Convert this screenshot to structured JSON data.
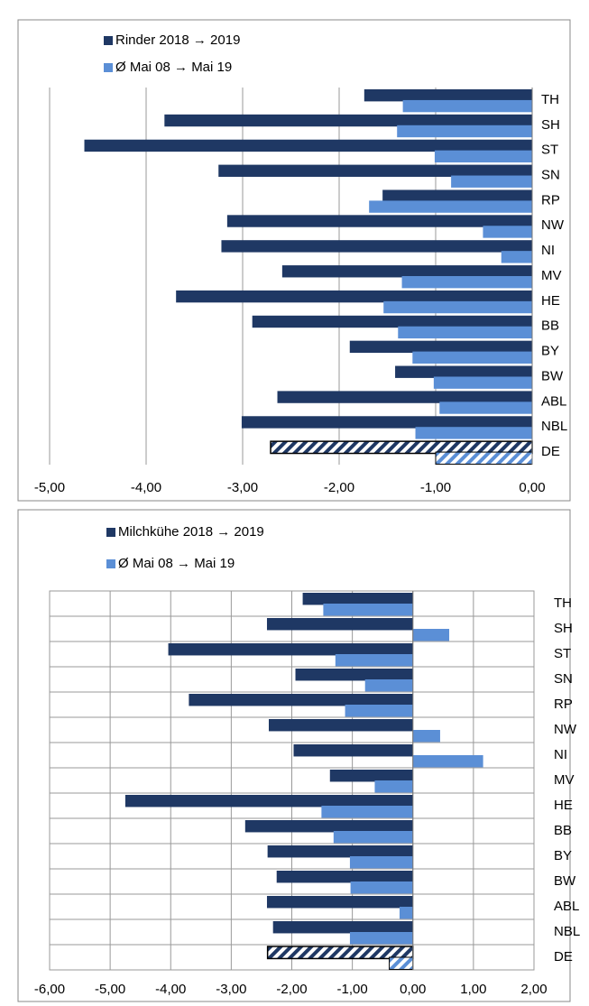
{
  "chart_data": [
    {
      "type": "bar",
      "orientation": "horizontal",
      "categories": [
        "TH",
        "SH",
        "ST",
        "SN",
        "RP",
        "NW",
        "NI",
        "MV",
        "HE",
        "BB",
        "BY",
        "BW",
        "ABL",
        "NBL",
        "DE"
      ],
      "series": [
        {
          "name": "Rinder  2018 → 2019",
          "color": "#1f3864",
          "values": [
            -1.74,
            -3.81,
            -4.64,
            -3.25,
            -1.55,
            -3.16,
            -3.22,
            -2.59,
            -3.69,
            -2.9,
            -1.89,
            -1.42,
            -2.64,
            -3.01,
            -2.71
          ]
        },
        {
          "name": "Ø Mai 08 → Mai 19",
          "color": "#5b8fd6",
          "values": [
            -1.34,
            -1.4,
            -1.01,
            -0.84,
            -1.69,
            -0.51,
            -0.32,
            -1.35,
            -1.54,
            -1.39,
            -1.24,
            -1.02,
            -0.96,
            -1.21,
            -1.0
          ]
        }
      ],
      "xlim": [
        -5,
        0
      ],
      "xticks": [
        {
          "value": -5,
          "label": "-5,00"
        },
        {
          "value": -4,
          "label": "-4,00"
        },
        {
          "value": -3,
          "label": "-3,00"
        },
        {
          "value": -2,
          "label": "-2,00"
        },
        {
          "value": -1,
          "label": "-1,00"
        },
        {
          "value": 0,
          "label": "0,00"
        }
      ],
      "negative_tick_color": "#ff0000",
      "vertical_grid": true,
      "horizontal_grid": false
    },
    {
      "type": "bar",
      "orientation": "horizontal",
      "categories": [
        "TH",
        "SH",
        "ST",
        "SN",
        "RP",
        "NW",
        "NI",
        "MV",
        "HE",
        "BB",
        "BY",
        "BW",
        "ABL",
        "NBL",
        "DE"
      ],
      "series": [
        {
          "name": "Milchkühe 2018 → 2019",
          "color": "#1f3864",
          "values": [
            -1.82,
            -2.41,
            -4.04,
            -1.94,
            -3.7,
            -2.38,
            -1.97,
            -1.37,
            -4.75,
            -2.77,
            -2.4,
            -2.25,
            -2.41,
            -2.31,
            -2.4
          ]
        },
        {
          "name": "Ø Mai 08 → Mai 19",
          "color": "#5b8fd6",
          "values": [
            -1.48,
            0.6,
            -1.28,
            -0.79,
            -1.12,
            0.45,
            1.16,
            -0.63,
            -1.51,
            -1.31,
            -1.04,
            -1.03,
            -0.22,
            -1.04,
            -0.39
          ]
        }
      ],
      "xlim": [
        -6,
        2
      ],
      "xticks": [
        {
          "value": -6,
          "label": "-6,00"
        },
        {
          "value": -5,
          "label": "-5,00"
        },
        {
          "value": -4,
          "label": "-4,00"
        },
        {
          "value": -3,
          "label": "-3,00"
        },
        {
          "value": -2,
          "label": "-2,00"
        },
        {
          "value": -1,
          "label": "-1,00"
        },
        {
          "value": 0,
          "label": "0,00"
        },
        {
          "value": 1,
          "label": "1,00"
        },
        {
          "value": 2,
          "label": "2,00"
        }
      ],
      "negative_tick_color": "#ff0000",
      "vertical_grid": true,
      "horizontal_grid": true
    }
  ]
}
